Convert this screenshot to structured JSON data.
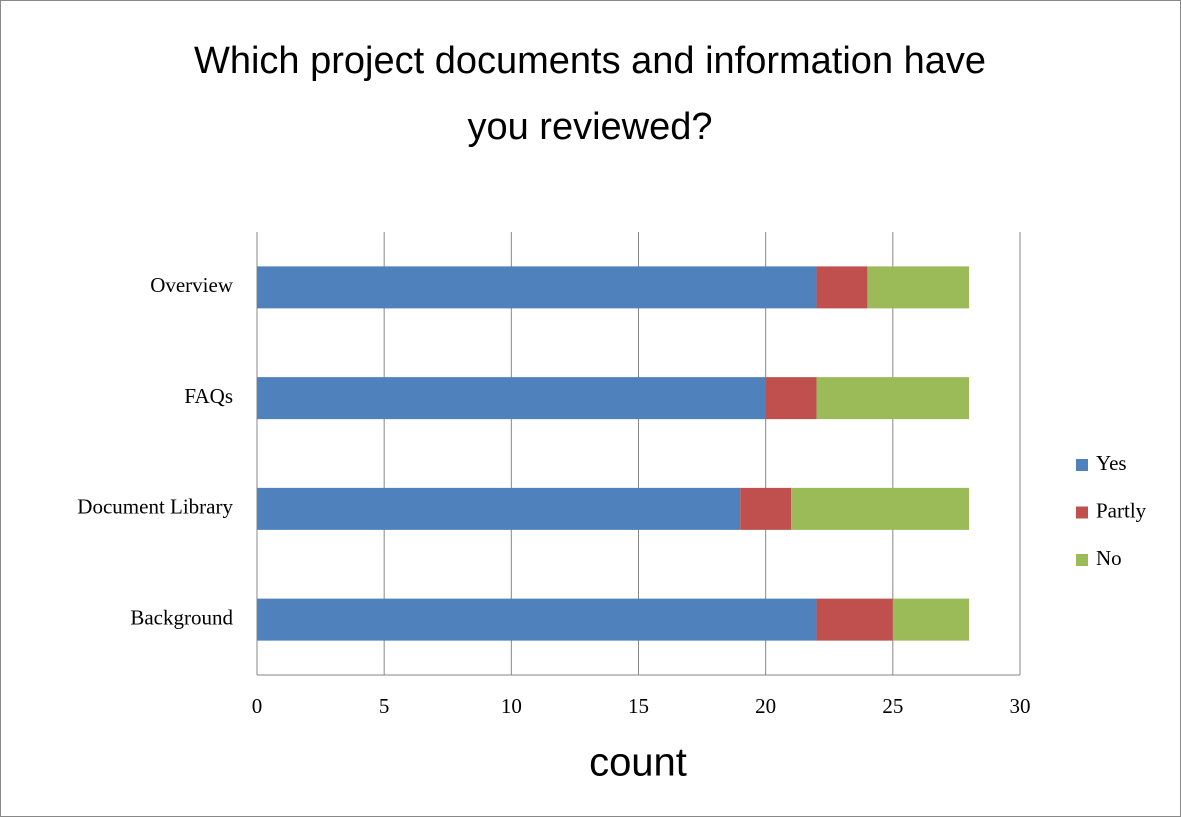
{
  "chart_data": {
    "type": "stacked-bar-horizontal",
    "title": "Which project documents and information have you reviewed?",
    "xlabel": "count",
    "categories": [
      "Overview",
      "FAQs",
      "Document Library",
      "Background"
    ],
    "series": [
      {
        "name": "Yes",
        "color": "#4f81bd",
        "values": [
          22,
          20,
          19,
          22
        ]
      },
      {
        "name": "Partly",
        "color": "#c0504d",
        "values": [
          2,
          2,
          2,
          3
        ]
      },
      {
        "name": "No",
        "color": "#9bbb59",
        "values": [
          4,
          6,
          7,
          3
        ]
      }
    ],
    "xlim": [
      0,
      30
    ],
    "xticks": [
      0,
      5,
      10,
      15,
      20,
      25,
      30
    ],
    "grid": true,
    "legend": "right"
  }
}
